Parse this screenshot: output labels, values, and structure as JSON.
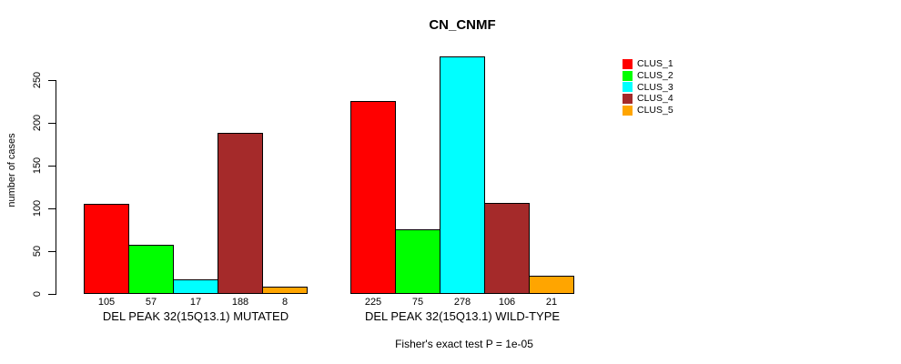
{
  "chart_data": {
    "type": "bar",
    "title": "CN_CNMF",
    "ylabel": "number of cases",
    "xlabel": "",
    "ylim": [
      0,
      280
    ],
    "yticks": [
      0,
      50,
      100,
      150,
      200,
      250
    ],
    "grid": false,
    "legend_position": "right",
    "bar_value_labels": true,
    "categories": [
      "DEL PEAK 32(15Q13.1) MUTATED",
      "DEL PEAK 32(15Q13.1) WILD-TYPE"
    ],
    "series": [
      {
        "name": "CLUS_1",
        "color": "#FF0000",
        "values": [
          105,
          225
        ]
      },
      {
        "name": "CLUS_2",
        "color": "#00FF00",
        "values": [
          57,
          75
        ]
      },
      {
        "name": "CLUS_3",
        "color": "#00FFFF",
        "values": [
          17,
          278
        ]
      },
      {
        "name": "CLUS_4",
        "color": "#A52A2A",
        "values": [
          188,
          106
        ]
      },
      {
        "name": "CLUS_5",
        "color": "#FFA500",
        "values": [
          8,
          21
        ]
      }
    ],
    "annotation": "Fisher's exact test P = 1e-05"
  }
}
